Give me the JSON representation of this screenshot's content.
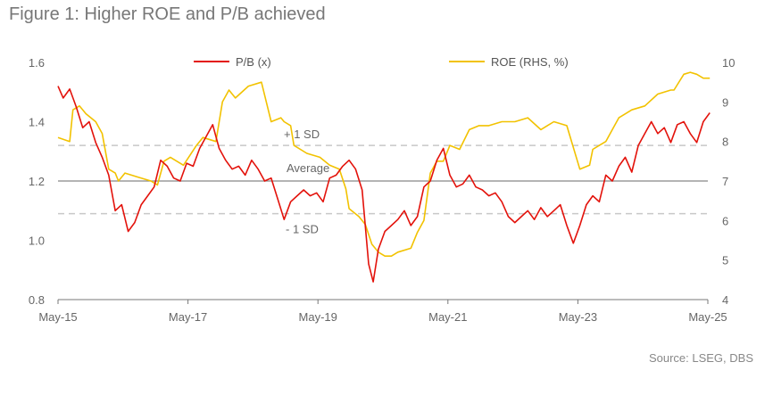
{
  "chart_data": {
    "type": "line",
    "title": "Figure 1: Higher ROE and P/B achieved",
    "source": "Source: LSEG, DBS",
    "x_ticks": [
      "May-15",
      "May-17",
      "May-19",
      "May-21",
      "May-23",
      "May-25"
    ],
    "x_range": [
      "May-15",
      "May-25"
    ],
    "y_left": {
      "range": [
        0.8,
        1.6
      ],
      "ticks": [
        "0.8",
        "1.0",
        "1.2",
        "1.4",
        "1.6"
      ]
    },
    "y_right": {
      "range": [
        4,
        10
      ],
      "ticks": [
        "4",
        "5",
        "6",
        "7",
        "8",
        "9",
        "10"
      ]
    },
    "legend": {
      "placement": "top",
      "pb_label": "P/B (x)",
      "roe_label": "ROE (RHS, %)"
    },
    "reference_lines": {
      "average": {
        "label": "Average",
        "value": 1.2
      },
      "plus_1sd": {
        "label": "+ 1 SD",
        "value": 1.32
      },
      "minus_1sd": {
        "label": "- 1 SD",
        "value": 1.09
      }
    },
    "series": [
      {
        "name": "P/B (x)",
        "axis": "left",
        "color": "#e3120b",
        "x": [
          2015.37,
          2015.45,
          2015.55,
          2015.65,
          2015.75,
          2015.85,
          2015.95,
          2016.05,
          2016.15,
          2016.25,
          2016.35,
          2016.45,
          2016.55,
          2016.65,
          2016.75,
          2016.85,
          2016.95,
          2017.05,
          2017.15,
          2017.25,
          2017.35,
          2017.45,
          2017.55,
          2017.65,
          2017.75,
          2017.85,
          2017.95,
          2018.05,
          2018.15,
          2018.25,
          2018.35,
          2018.45,
          2018.55,
          2018.65,
          2018.75,
          2018.85,
          2018.95,
          2019.05,
          2019.15,
          2019.25,
          2019.35,
          2019.45,
          2019.55,
          2019.65,
          2019.75,
          2019.85,
          2019.95,
          2020.05,
          2020.15,
          2020.22,
          2020.3,
          2020.4,
          2020.5,
          2020.6,
          2020.7,
          2020.8,
          2020.9,
          2021.0,
          2021.1,
          2021.2,
          2021.3,
          2021.4,
          2021.5,
          2021.6,
          2021.7,
          2021.8,
          2021.9,
          2022.0,
          2022.1,
          2022.2,
          2022.3,
          2022.4,
          2022.5,
          2022.6,
          2022.7,
          2022.8,
          2022.9,
          2023.0,
          2023.1,
          2023.2,
          2023.3,
          2023.4,
          2023.5,
          2023.6,
          2023.7,
          2023.8,
          2023.9,
          2024.0,
          2024.1,
          2024.2,
          2024.3,
          2024.4,
          2024.5,
          2024.6,
          2024.7,
          2024.8,
          2024.9,
          2025.0,
          2025.1,
          2025.2,
          2025.3,
          2025.4
        ],
        "values": [
          1.52,
          1.48,
          1.51,
          1.45,
          1.38,
          1.4,
          1.33,
          1.28,
          1.22,
          1.1,
          1.12,
          1.03,
          1.06,
          1.12,
          1.15,
          1.18,
          1.27,
          1.25,
          1.21,
          1.2,
          1.26,
          1.25,
          1.31,
          1.35,
          1.39,
          1.31,
          1.27,
          1.24,
          1.25,
          1.22,
          1.27,
          1.24,
          1.2,
          1.21,
          1.14,
          1.07,
          1.13,
          1.15,
          1.17,
          1.15,
          1.16,
          1.13,
          1.21,
          1.22,
          1.25,
          1.27,
          1.24,
          1.17,
          0.92,
          0.86,
          0.97,
          1.03,
          1.05,
          1.07,
          1.1,
          1.05,
          1.08,
          1.18,
          1.2,
          1.27,
          1.31,
          1.22,
          1.18,
          1.19,
          1.22,
          1.18,
          1.17,
          1.15,
          1.16,
          1.13,
          1.08,
          1.06,
          1.08,
          1.1,
          1.07,
          1.11,
          1.08,
          1.1,
          1.12,
          1.05,
          0.99,
          1.05,
          1.12,
          1.15,
          1.13,
          1.22,
          1.2,
          1.25,
          1.28,
          1.23,
          1.32,
          1.36,
          1.4,
          1.36,
          1.38,
          1.33,
          1.39,
          1.4,
          1.36,
          1.33,
          1.4,
          1.43
        ]
      },
      {
        "name": "ROE (RHS, %)",
        "axis": "right",
        "color": "#f2c200",
        "x": [
          2015.37,
          2015.55,
          2015.6,
          2015.7,
          2015.8,
          2015.95,
          2016.05,
          2016.15,
          2016.25,
          2016.3,
          2016.4,
          2016.6,
          2016.8,
          2016.9,
          2017.0,
          2017.1,
          2017.3,
          2017.5,
          2017.6,
          2017.8,
          2017.9,
          2018.0,
          2018.1,
          2018.3,
          2018.5,
          2018.65,
          2018.8,
          2018.85,
          2018.95,
          2019.0,
          2019.2,
          2019.4,
          2019.55,
          2019.7,
          2019.8,
          2019.85,
          2020.0,
          2020.1,
          2020.2,
          2020.3,
          2020.4,
          2020.5,
          2020.6,
          2020.8,
          2020.9,
          2021.0,
          2021.1,
          2021.2,
          2021.3,
          2021.4,
          2021.55,
          2021.7,
          2021.85,
          2022.0,
          2022.2,
          2022.4,
          2022.6,
          2022.8,
          2022.9,
          2023.0,
          2023.2,
          2023.4,
          2023.55,
          2023.6,
          2023.7,
          2023.8,
          2023.9,
          2024.0,
          2024.2,
          2024.4,
          2024.6,
          2024.8,
          2024.85,
          2025.0,
          2025.1,
          2025.2,
          2025.3,
          2025.4
        ],
        "values": [
          8.1,
          8.0,
          8.8,
          8.9,
          8.7,
          8.5,
          8.2,
          7.3,
          7.2,
          7.0,
          7.2,
          7.1,
          7.0,
          6.9,
          7.5,
          7.6,
          7.4,
          7.9,
          8.1,
          8.0,
          9.0,
          9.3,
          9.1,
          9.4,
          9.5,
          8.5,
          8.6,
          8.5,
          8.4,
          7.9,
          7.7,
          7.6,
          7.4,
          7.3,
          6.8,
          6.3,
          6.1,
          5.9,
          5.4,
          5.2,
          5.1,
          5.1,
          5.2,
          5.3,
          5.7,
          6.0,
          7.2,
          7.5,
          7.5,
          7.9,
          7.8,
          8.3,
          8.4,
          8.4,
          8.5,
          8.5,
          8.6,
          8.3,
          8.4,
          8.5,
          8.4,
          7.3,
          7.4,
          7.8,
          7.9,
          8.0,
          8.3,
          8.6,
          8.8,
          8.9,
          9.2,
          9.3,
          9.3,
          9.7,
          9.75,
          9.7,
          9.6,
          9.6
        ]
      }
    ]
  }
}
